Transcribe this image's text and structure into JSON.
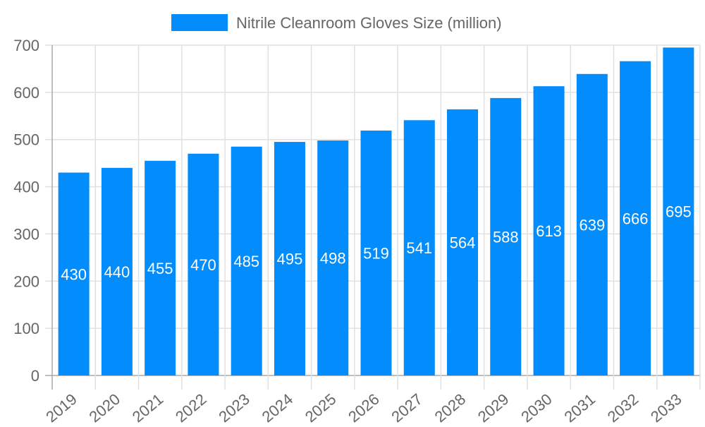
{
  "chart_data": {
    "type": "bar",
    "title": "",
    "xlabel": "",
    "ylabel": "",
    "legend": {
      "position": "top",
      "entries": [
        "Nitrile Cleanroom Gloves Size (million)"
      ]
    },
    "categories": [
      "2019",
      "2020",
      "2021",
      "2022",
      "2023",
      "2024",
      "2025",
      "2026",
      "2027",
      "2028",
      "2029",
      "2030",
      "2031",
      "2032",
      "2033"
    ],
    "series": [
      {
        "name": "Nitrile Cleanroom Gloves Size (million)",
        "values": [
          430,
          440,
          455,
          470,
          485,
          495,
          498,
          519,
          541,
          564,
          588,
          613,
          639,
          666,
          695
        ],
        "color": "#038cfc"
      }
    ],
    "ylim": [
      0,
      700
    ],
    "yticks": [
      0,
      100,
      200,
      300,
      400,
      500,
      600,
      700
    ],
    "grid": true,
    "data_labels": true
  }
}
